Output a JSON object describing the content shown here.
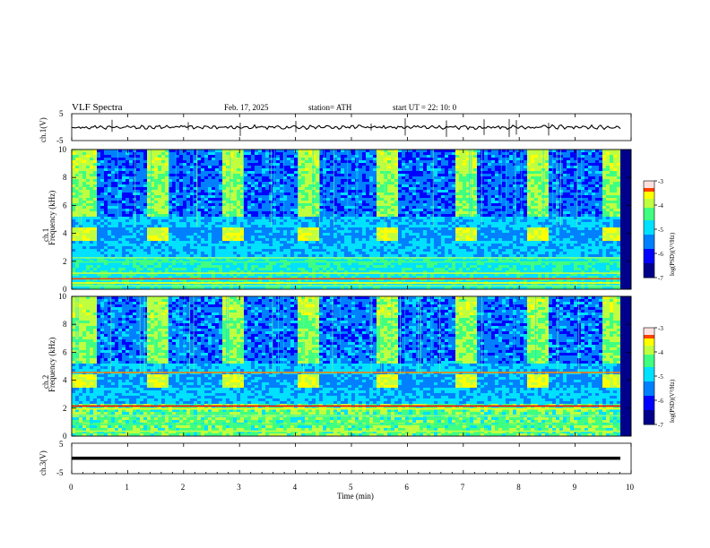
{
  "header": {
    "title": "VLF  Spectra",
    "date": "Feb. 17, 2025",
    "station": "station= ATH",
    "start": "start  UT  =    22: 10: 0"
  },
  "colors": {
    "colormap": [
      "#000000",
      "#00007f",
      "#0000ff",
      "#007fff",
      "#00ffff",
      "#7fff7f",
      "#ffff00",
      "#ff7f00",
      "#ff0000",
      "#ffffff"
    ],
    "background_spectrogram": "#00008b",
    "trace": "#000000"
  },
  "chart_data": [
    {
      "type": "line",
      "name": "ch1-voltage",
      "ylabel": "ch.1(V)",
      "ylim": [
        -5,
        5
      ],
      "yticks": [
        "5",
        "-5"
      ],
      "x_range": [
        0,
        10
      ],
      "description_values": {
        "mean": 0,
        "amplitude_approx": 1.2
      }
    },
    {
      "type": "heatmap",
      "name": "ch1-spectrogram",
      "ylabel": "ch.1\nFrequency (kHz)",
      "ylabel_top": "ch.1",
      "ylabel_main": "Frequency  (kHz)",
      "ylim": [
        0,
        10
      ],
      "yticks": [
        "0",
        "2",
        "4",
        "6",
        "8",
        "10"
      ],
      "x_range": [
        0,
        10
      ],
      "colorbar": {
        "label": "log(PSD)(V²/Hz)",
        "range": [
          -7,
          -3
        ],
        "ticks": [
          "-3",
          "-4",
          "-5",
          "-6",
          "-7"
        ]
      },
      "periodic_bursts_minutes": [
        0,
        1.3,
        2.65,
        4.0,
        5.4,
        6.8,
        8.1,
        9.45
      ],
      "burst_band_khz": [
        3.6,
        4.4
      ]
    },
    {
      "type": "heatmap",
      "name": "ch2-spectrogram",
      "ylabel_top": "ch.2",
      "ylabel_main": "Frequency  (kHz)",
      "ylim": [
        0,
        10
      ],
      "yticks": [
        "0",
        "2",
        "4",
        "6",
        "8",
        "10"
      ],
      "x_range": [
        0,
        10
      ],
      "colorbar": {
        "label": "log(PSD)(V²/Hz)",
        "range": [
          -7,
          -3
        ],
        "ticks": [
          "-3",
          "-4",
          "-5",
          "-6",
          "-7"
        ]
      },
      "periodic_bursts_minutes": [
        0,
        1.3,
        2.65,
        4.0,
        5.4,
        6.8,
        8.1,
        9.45
      ],
      "burst_band_khz": [
        3.6,
        4.4
      ]
    },
    {
      "type": "line",
      "name": "ch3-voltage",
      "ylabel": "ch.3(V)",
      "ylim": [
        -5,
        5
      ],
      "yticks": [
        "5",
        "-5"
      ],
      "x_range": [
        0,
        10
      ],
      "xlabel": "Time  (min)",
      "xticks": [
        "0",
        "1",
        "2",
        "3",
        "4",
        "5",
        "6",
        "7",
        "8",
        "9",
        "10"
      ],
      "description_values": {
        "level": 0
      }
    }
  ]
}
